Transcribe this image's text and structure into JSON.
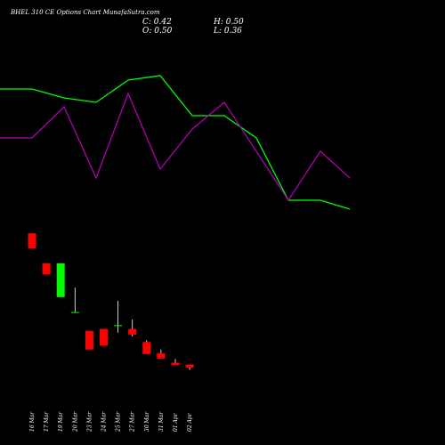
{
  "header": {
    "title": "BHEL 310  CE Options  Chart MunafaSutra.com",
    "close": "C: 0.42",
    "open": "O: 0.50",
    "high": "H: 0.50",
    "low": "L: 0.36"
  },
  "colors": {
    "background": "#000000",
    "up": "#00ff00",
    "down": "#ff0000",
    "line_green": "#00ff00",
    "line_magenta": "#b000b0",
    "wick": "#ffffff",
    "text": "#ffffff"
  },
  "chart_data": {
    "type": "candlestick",
    "categories": [
      "16 Mar",
      "17 Mar",
      "19 Mar",
      "20 Mar",
      "23 Mar",
      "24 Mar",
      "25 Mar",
      "27 Mar",
      "30 Mar",
      "31 Mar",
      "01 Apr",
      "02 Apr"
    ],
    "candles": [
      {
        "open": 4.0,
        "high": 4.0,
        "low": 3.6,
        "close": 3.6
      },
      {
        "open": 3.2,
        "high": 3.2,
        "low": 2.9,
        "close": 2.9
      },
      {
        "open": 2.3,
        "high": 3.2,
        "low": 2.3,
        "close": 3.2
      },
      {
        "open": 1.9,
        "high": 2.55,
        "low": 1.9,
        "close": 1.9
      },
      {
        "open": 1.4,
        "high": 1.4,
        "low": 0.9,
        "close": 0.9
      },
      {
        "open": 1.45,
        "high": 1.45,
        "low": 1.0,
        "close": 1.0
      },
      {
        "open": 1.55,
        "high": 2.2,
        "low": 1.35,
        "close": 1.55
      },
      {
        "open": 1.45,
        "high": 1.7,
        "low": 1.25,
        "close": 1.3
      },
      {
        "open": 1.1,
        "high": 1.15,
        "low": 0.78,
        "close": 0.78
      },
      {
        "open": 0.8,
        "high": 0.9,
        "low": 0.66,
        "close": 0.66
      },
      {
        "open": 0.55,
        "high": 0.65,
        "low": 0.48,
        "close": 0.48
      },
      {
        "open": 0.5,
        "high": 0.5,
        "low": 0.36,
        "close": 0.42
      }
    ],
    "series": [
      {
        "values": [
          3.0,
          3.0,
          2.8,
          2.7,
          3.2,
          3.3,
          2.4,
          2.4,
          1.9,
          0.5,
          0.5,
          0.3
        ]
      },
      {
        "values": [
          1.9,
          1.9,
          2.6,
          1.0,
          2.9,
          1.2,
          2.1,
          2.7,
          1.6,
          0.5,
          1.6,
          1.0
        ]
      }
    ]
  }
}
